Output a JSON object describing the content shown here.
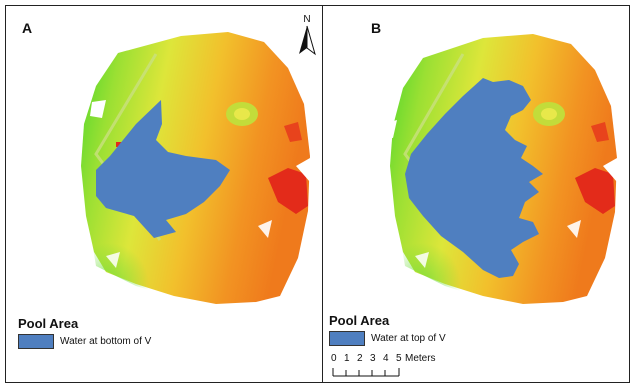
{
  "panels": [
    {
      "letter": "A",
      "legend_title": "Pool Area",
      "legend_item": "Water at bottom of V"
    },
    {
      "letter": "B",
      "legend_title": "Pool Area",
      "legend_item": "Water at top of V"
    }
  ],
  "north_arrow": {
    "label": "N",
    "icon": "north-arrow-icon"
  },
  "scale_bar": {
    "ticks": [
      "0",
      "1",
      "2",
      "3",
      "4",
      "5"
    ],
    "unit": "Meters"
  },
  "colors": {
    "water": "#4f7fc0",
    "elevation_low": "#6fdc3a",
    "elevation_mid": "#e6e83a",
    "elevation_high": "#f08a1c",
    "elevation_peak": "#e32b1a"
  }
}
